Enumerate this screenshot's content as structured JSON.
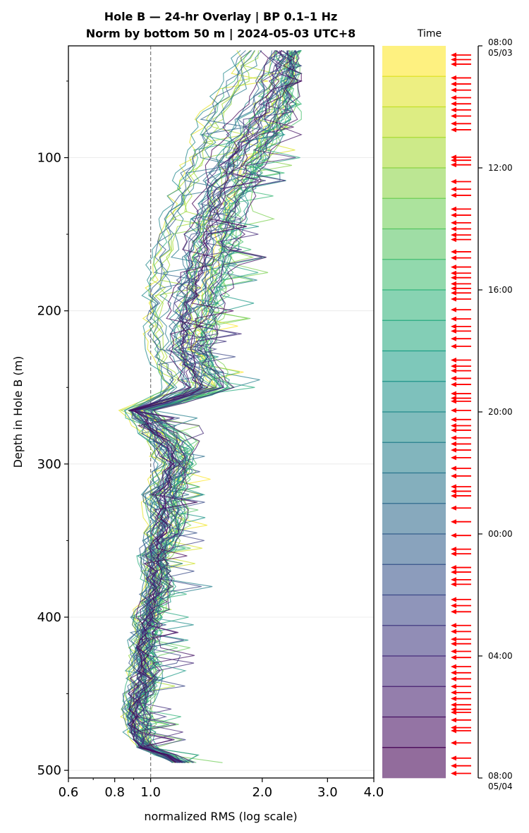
{
  "chart_data": {
    "type": "line",
    "title_line1": "Hole B — 24-hr Overlay  |  BP 0.1–1 Hz",
    "title_line2": "Norm by bottom 50 m  |  2024-05-03 UTC+8",
    "xlabel": "normalized RMS  (log scale)",
    "ylabel": "Depth in Hole B (m)",
    "x_scale": "log",
    "xlim": [
      0.6,
      4.0
    ],
    "ylim": [
      505,
      27
    ],
    "x_ticks": [
      "0.6",
      "0.8",
      "1.0",
      "2.0",
      "3.0",
      "4.0"
    ],
    "y_ticks": [
      "100",
      "200",
      "300",
      "400",
      "500"
    ],
    "reference_line_x": 1.0,
    "grid": "horizontal",
    "n_traces": 56,
    "depth_samples_m": [
      30,
      50,
      75,
      100,
      125,
      150,
      175,
      200,
      225,
      250,
      265,
      285,
      300,
      320,
      340,
      360,
      380,
      400,
      420,
      440,
      460,
      475,
      485,
      495
    ],
    "median_profile_rms": [
      2.35,
      2.3,
      2.05,
      1.75,
      1.55,
      1.45,
      1.38,
      1.3,
      1.25,
      1.4,
      0.92,
      1.1,
      1.18,
      1.08,
      1.1,
      1.02,
      1.05,
      0.98,
      0.96,
      0.97,
      0.9,
      0.92,
      0.97,
      1.22
    ],
    "profile_low_rms": [
      1.75,
      1.6,
      1.35,
      1.25,
      1.15,
      1.05,
      1.0,
      0.98,
      1.0,
      1.1,
      0.85,
      1.0,
      1.05,
      0.98,
      1.0,
      0.95,
      0.98,
      0.92,
      0.9,
      0.88,
      0.86,
      0.88,
      0.94,
      1.18
    ],
    "profile_high_rms": [
      2.5,
      2.45,
      2.4,
      2.05,
      1.85,
      1.75,
      1.65,
      1.55,
      1.45,
      1.65,
      1.0,
      1.3,
      1.3,
      1.2,
      1.25,
      1.1,
      1.15,
      1.05,
      1.03,
      1.05,
      0.98,
      1.0,
      1.02,
      1.28
    ]
  },
  "colorbar": {
    "label": "Time",
    "colormap": "viridis",
    "tick_labels": [
      {
        "time": "08:00",
        "date": "05/03"
      },
      {
        "time": "12:00",
        "date": ""
      },
      {
        "time": "16:00",
        "date": ""
      },
      {
        "time": "20:00",
        "date": ""
      },
      {
        "time": "00:00",
        "date": ""
      },
      {
        "time": "04:00",
        "date": ""
      },
      {
        "time": "08:00",
        "date": "05/04"
      }
    ],
    "n_bands": 24,
    "marker_color": "#ff0000",
    "marker_hours": [
      0.3,
      0.45,
      0.6,
      1.05,
      1.25,
      1.45,
      1.7,
      1.9,
      2.1,
      2.3,
      2.55,
      2.75,
      3.65,
      3.75,
      3.9,
      4.45,
      4.7,
      4.9,
      5.35,
      5.55,
      5.8,
      6.0,
      6.2,
      6.35,
      6.75,
      6.95,
      7.25,
      7.45,
      7.6,
      7.8,
      7.95,
      8.1,
      8.3,
      8.65,
      8.95,
      9.2,
      9.35,
      9.6,
      9.85,
      10.3,
      10.5,
      10.65,
      10.9,
      11.1,
      11.4,
      11.55,
      11.65,
      11.95,
      12.25,
      12.45,
      12.6,
      12.85,
      13.05,
      13.25,
      13.5,
      13.85,
      14.1,
      14.45,
      14.6,
      14.75,
      15.15,
      15.6,
      16.05,
      16.5,
      16.65,
      17.1,
      17.25,
      17.5,
      17.65,
      18.15,
      18.35,
      18.55,
      19.0,
      19.2,
      19.45,
      19.6,
      19.85,
      20.05,
      20.35,
      20.55,
      20.75,
      21.0,
      21.2,
      21.4,
      21.6,
      21.75,
      21.85,
      22.1,
      22.35,
      22.45,
      22.85,
      23.35,
      23.6,
      23.85
    ]
  }
}
